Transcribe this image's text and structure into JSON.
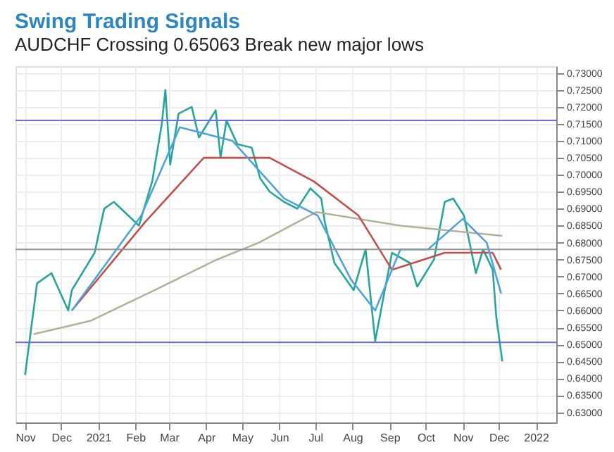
{
  "chart_data": {
    "type": "line",
    "title": "Swing Trading Signals",
    "subtitle": "AUDCHF Crossing 0.65063 Break new major lows",
    "xlim": [
      "2020-10-24",
      "2022-01-18"
    ],
    "xticks": [
      {
        "value": "2020-11-01",
        "label": "Nov"
      },
      {
        "value": "2020-12-01",
        "label": "Dec"
      },
      {
        "value": "2021-01-01",
        "label": "2021"
      },
      {
        "value": "2021-02-01",
        "label": "Feb"
      },
      {
        "value": "2021-03-01",
        "label": "Mar"
      },
      {
        "value": "2021-04-01",
        "label": "Apr"
      },
      {
        "value": "2021-05-01",
        "label": "May"
      },
      {
        "value": "2021-06-01",
        "label": "Jun"
      },
      {
        "value": "2021-07-01",
        "label": "Jul"
      },
      {
        "value": "2021-08-01",
        "label": "Aug"
      },
      {
        "value": "2021-09-01",
        "label": "Sep"
      },
      {
        "value": "2021-10-01",
        "label": "Oct"
      },
      {
        "value": "2021-11-01",
        "label": "Nov"
      },
      {
        "value": "2021-12-01",
        "label": "Dec"
      },
      {
        "value": "2022-01-01",
        "label": "2022"
      }
    ],
    "ylim": [
      0.627,
      0.732
    ],
    "yticks": [
      {
        "value": 0.63,
        "label": "0.63000"
      },
      {
        "value": 0.635,
        "label": "0.63500"
      },
      {
        "value": 0.64,
        "label": "0.64000"
      },
      {
        "value": 0.645,
        "label": "0.64500"
      },
      {
        "value": 0.65,
        "label": "0.65000"
      },
      {
        "value": 0.655,
        "label": "0.65500"
      },
      {
        "value": 0.66,
        "label": "0.66000"
      },
      {
        "value": 0.665,
        "label": "0.66500"
      },
      {
        "value": 0.67,
        "label": "0.67000"
      },
      {
        "value": 0.675,
        "label": "0.67500"
      },
      {
        "value": 0.68,
        "label": "0.68000"
      },
      {
        "value": 0.685,
        "label": "0.68500"
      },
      {
        "value": 0.69,
        "label": "0.69000"
      },
      {
        "value": 0.695,
        "label": "0.69500"
      },
      {
        "value": 0.7,
        "label": "0.70000"
      },
      {
        "value": 0.705,
        "label": "0.70500"
      },
      {
        "value": 0.71,
        "label": "0.71000"
      },
      {
        "value": 0.715,
        "label": "0.71500"
      },
      {
        "value": 0.72,
        "label": "0.72000"
      },
      {
        "value": 0.725,
        "label": "0.72500"
      },
      {
        "value": 0.73,
        "label": "0.73000"
      }
    ],
    "grid": true,
    "series": [
      {
        "color": "#26a69a",
        "x": [
          "2020-11-01",
          "2020-11-11",
          "2020-11-23",
          "2020-12-07",
          "2020-12-10",
          "2020-12-29",
          "2021-01-06",
          "2021-01-14",
          "2021-02-04",
          "2021-02-15",
          "2021-02-23",
          "2021-02-26",
          "2021-03-02",
          "2021-03-09",
          "2021-03-20",
          "2021-03-26",
          "2021-04-09",
          "2021-04-13",
          "2021-04-18",
          "2021-04-27",
          "2021-05-09",
          "2021-05-16",
          "2021-05-24",
          "2021-06-05",
          "2021-06-16",
          "2021-06-27",
          "2021-07-06",
          "2021-07-09",
          "2021-07-17",
          "2021-08-02",
          "2021-08-12",
          "2021-08-20",
          "2021-08-28",
          "2021-09-03",
          "2021-09-18",
          "2021-09-24",
          "2021-10-08",
          "2021-10-17",
          "2021-10-24",
          "2021-11-02",
          "2021-11-12",
          "2021-11-18",
          "2021-11-26",
          "2021-11-29",
          "2021-12-04"
        ],
        "values": [
          0.641,
          0.668,
          0.671,
          0.66,
          0.666,
          0.677,
          0.69,
          0.692,
          0.685,
          0.698,
          0.715,
          0.725,
          0.703,
          0.718,
          0.72,
          0.711,
          0.719,
          0.705,
          0.716,
          0.709,
          0.708,
          0.699,
          0.695,
          0.692,
          0.69,
          0.696,
          0.693,
          0.686,
          0.674,
          0.666,
          0.678,
          0.651,
          0.666,
          0.677,
          0.674,
          0.667,
          0.675,
          0.692,
          0.693,
          0.688,
          0.671,
          0.678,
          0.672,
          0.658,
          0.645
        ]
      },
      {
        "color": "#b5b09a",
        "x": [
          "2020-11-08",
          "2020-12-26",
          "2021-02-17",
          "2021-04-10",
          "2021-05-15",
          "2021-07-02",
          "2021-09-10",
          "2021-12-04"
        ],
        "values": [
          0.653,
          0.657,
          0.666,
          0.675,
          0.68,
          0.689,
          0.685,
          0.682
        ]
      },
      {
        "color": "#c0504d",
        "x": [
          "2020-12-10",
          "2021-02-09",
          "2021-03-30",
          "2021-05-24",
          "2021-06-30",
          "2021-08-06",
          "2021-09-03",
          "2021-10-17",
          "2021-11-26",
          "2021-12-03"
        ],
        "values": [
          0.66,
          0.686,
          0.705,
          0.705,
          0.698,
          0.688,
          0.672,
          0.677,
          0.677,
          0.672
        ]
      },
      {
        "color": "#4fa3d9",
        "x": [
          "2020-12-10",
          "2021-02-06",
          "2021-03-10",
          "2021-04-23",
          "2021-06-05",
          "2021-07-03",
          "2021-07-31",
          "2021-08-20",
          "2021-09-10",
          "2021-10-03",
          "2021-11-01",
          "2021-11-21",
          "2021-12-03"
        ],
        "values": [
          0.66,
          0.688,
          0.714,
          0.71,
          0.693,
          0.688,
          0.669,
          0.66,
          0.678,
          0.678,
          0.687,
          0.68,
          0.665
        ]
      }
    ],
    "ref_lines": [
      {
        "axis": "y",
        "value": 0.716,
        "color": "#6a6ae8"
      },
      {
        "axis": "y",
        "value": 0.65063,
        "color": "#6a6ae8"
      },
      {
        "axis": "y",
        "value": 0.678,
        "color": "#909090"
      }
    ]
  }
}
